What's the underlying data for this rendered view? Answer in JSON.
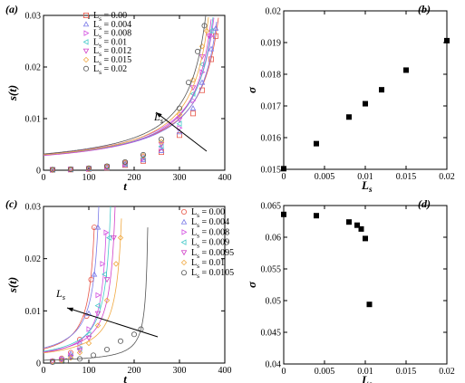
{
  "colors": {
    "series": [
      "#e8584a",
      "#7a7ae8",
      "#d24fe0",
      "#45c9c9",
      "#d040c8",
      "#f0a840",
      "#555555"
    ],
    "marker": "#000000"
  },
  "chart_data": [
    {
      "type": "scatter",
      "panel_label": "(a)",
      "xlabel": "t",
      "ylabel": "s(t)",
      "xlim": [
        0,
        400
      ],
      "ylim": [
        0,
        0.03
      ],
      "xticks": [
        "0",
        "100",
        "200",
        "300",
        "400"
      ],
      "yticks": [
        "0",
        "0.01",
        "0.02",
        "0.03"
      ],
      "legend_position": "top-left",
      "annotation": {
        "text": "L",
        "sub": "s",
        "direction": "increasing"
      },
      "series": [
        {
          "name": "L s = 0.00",
          "name_main": "L",
          "name_sub": "s",
          "name_value": " = 0.00",
          "marker": "square",
          "tc": 430,
          "x": [
            20,
            60,
            100,
            140,
            180,
            220,
            260,
            300,
            330,
            350,
            370,
            380
          ],
          "y": [
            8e-05,
            0.00013,
            0.00025,
            0.0005,
            0.001,
            0.0018,
            0.0035,
            0.0068,
            0.011,
            0.0155,
            0.0215,
            0.026
          ]
        },
        {
          "name": "L s = 0.004",
          "name_main": "L",
          "name_sub": "s",
          "name_value": " = 0.004",
          "marker": "triangle-up",
          "tc": 425,
          "x": [
            20,
            60,
            100,
            140,
            180,
            220,
            260,
            300,
            330,
            350,
            370,
            380
          ],
          "y": [
            8e-05,
            0.00014,
            0.00028,
            0.00055,
            0.0011,
            0.002,
            0.0038,
            0.0074,
            0.012,
            0.017,
            0.0235,
            0.0275
          ]
        },
        {
          "name": "L s = 0.008",
          "name_main": "L",
          "name_sub": "s",
          "name_value": " = 0.008",
          "marker": "triangle-right",
          "tc": 420,
          "x": [
            20,
            60,
            100,
            140,
            180,
            220,
            260,
            300,
            330,
            350,
            370
          ],
          "y": [
            9e-05,
            0.00015,
            0.0003,
            0.0006,
            0.0012,
            0.0022,
            0.0042,
            0.0082,
            0.0135,
            0.019,
            0.026
          ]
        },
        {
          "name": "L s = 0.01",
          "name_main": "L",
          "name_sub": "s",
          "name_value": " = 0.01",
          "marker": "triangle-left",
          "tc": 415,
          "x": [
            20,
            60,
            100,
            140,
            180,
            220,
            260,
            300,
            330,
            350,
            370
          ],
          "y": [
            9e-05,
            0.00016,
            0.00032,
            0.00065,
            0.0013,
            0.0024,
            0.0046,
            0.009,
            0.0148,
            0.0205,
            0.027
          ]
        },
        {
          "name": "L s = 0.012",
          "name_main": "L",
          "name_sub": "s",
          "name_value": " = 0.012",
          "marker": "triangle-down",
          "tc": 410,
          "x": [
            20,
            60,
            100,
            140,
            180,
            220,
            260,
            300,
            330,
            350,
            365
          ],
          "y": [
            0.0001,
            0.00017,
            0.00034,
            0.0007,
            0.0014,
            0.0026,
            0.005,
            0.0098,
            0.016,
            0.022,
            0.026
          ]
        },
        {
          "name": "L s = 0.015",
          "name_main": "L",
          "name_sub": "s",
          "name_value": " = 0.015",
          "marker": "diamond",
          "tc": 405,
          "x": [
            20,
            60,
            100,
            140,
            180,
            220,
            260,
            300,
            330,
            350,
            360
          ],
          "y": [
            0.0001,
            0.00018,
            0.00036,
            0.00075,
            0.0015,
            0.0028,
            0.0055,
            0.0108,
            0.0175,
            0.024,
            0.027
          ]
        },
        {
          "name": "L s = 0.02",
          "name_main": "L",
          "name_sub": "s",
          "name_value": " = 0.02",
          "marker": "circle",
          "tc": 400,
          "x": [
            20,
            60,
            100,
            140,
            180,
            220,
            260,
            300,
            320,
            340,
            355
          ],
          "y": [
            0.0001,
            0.0002,
            0.0004,
            0.0008,
            0.0016,
            0.003,
            0.006,
            0.012,
            0.017,
            0.023,
            0.028
          ]
        }
      ]
    },
    {
      "type": "scatter",
      "panel_label": "(b)",
      "xlabel": "L",
      "xlabel_sub": "s",
      "ylabel": "σ",
      "xlim": [
        0,
        0.02
      ],
      "ylim": [
        0.015,
        0.02
      ],
      "xticks": [
        "0",
        "0.005",
        "0.01",
        "0.015",
        "0.02"
      ],
      "yticks": [
        "0.015",
        "0.016",
        "0.017",
        "0.018",
        "0.019",
        "0.02"
      ],
      "x": [
        0.0,
        0.004,
        0.008,
        0.01,
        0.012,
        0.015,
        0.02
      ],
      "y": [
        0.01502,
        0.01581,
        0.01665,
        0.01707,
        0.01751,
        0.01813,
        0.01906
      ]
    },
    {
      "type": "scatter",
      "panel_label": "(c)",
      "xlabel": "t",
      "ylabel": "s(t)",
      "xlim": [
        0,
        400
      ],
      "ylim": [
        0,
        0.03
      ],
      "xticks": [
        "0",
        "100",
        "200",
        "300",
        "400"
      ],
      "yticks": [
        "0",
        "0.01",
        "0.02",
        "0.03"
      ],
      "legend_position": "top-right",
      "annotation": {
        "text": "L",
        "sub": "s",
        "direction": "increasing"
      },
      "series": [
        {
          "name": "L s = 0.00",
          "name_main": "L",
          "name_sub": "s",
          "name_value": " = 0.00",
          "marker": "circle",
          "tc": 125,
          "x": [
            20,
            40,
            60,
            80,
            95,
            105,
            112
          ],
          "y": [
            0.0004,
            0.0009,
            0.002,
            0.0045,
            0.009,
            0.016,
            0.026
          ]
        },
        {
          "name": "L s = 0.004",
          "name_main": "L",
          "name_sub": "s",
          "name_value": " = 0.004",
          "marker": "triangle-up",
          "tc": 135,
          "x": [
            20,
            40,
            60,
            80,
            100,
            112,
            120
          ],
          "y": [
            0.0004,
            0.0008,
            0.0018,
            0.004,
            0.0095,
            0.017,
            0.026
          ]
        },
        {
          "name": "L s = 0.008",
          "name_main": "L",
          "name_sub": "s",
          "name_value": " = 0.008",
          "marker": "triangle-right",
          "tc": 150,
          "x": [
            20,
            40,
            60,
            80,
            100,
            120,
            130,
            138
          ],
          "y": [
            0.0003,
            0.0007,
            0.0015,
            0.003,
            0.0065,
            0.013,
            0.019,
            0.025
          ]
        },
        {
          "name": "L s = 0.009",
          "name_main": "L",
          "name_sub": "s",
          "name_value": " = 0.009",
          "marker": "triangle-left",
          "tc": 160,
          "x": [
            20,
            40,
            60,
            80,
            100,
            120,
            135,
            145
          ],
          "y": [
            0.0003,
            0.0006,
            0.0013,
            0.0027,
            0.0055,
            0.011,
            0.017,
            0.024
          ]
        },
        {
          "name": "L s = 0.0095",
          "name_main": "L",
          "name_sub": "s",
          "name_value": " = 0.0095",
          "marker": "triangle-down",
          "tc": 170,
          "x": [
            20,
            40,
            60,
            80,
            100,
            120,
            140,
            155
          ],
          "y": [
            0.0003,
            0.0006,
            0.0012,
            0.0024,
            0.0048,
            0.0095,
            0.016,
            0.024
          ]
        },
        {
          "name": "L s = 0.01",
          "name_main": "L",
          "name_sub": "s",
          "name_value": " = 0.01",
          "marker": "diamond",
          "tc": 185,
          "x": [
            20,
            40,
            60,
            80,
            100,
            120,
            140,
            160,
            170
          ],
          "y": [
            0.0003,
            0.0005,
            0.001,
            0.002,
            0.0038,
            0.0072,
            0.012,
            0.019,
            0.024
          ]
        },
        {
          "name": "L s = 0.0105",
          "name_main": "L",
          "name_sub": "s",
          "name_value": " = 0.0105",
          "marker": "circle",
          "tc": 235,
          "x": [
            20,
            50,
            80,
            110,
            140,
            170,
            200,
            215
          ],
          "y": [
            0.0002,
            0.0004,
            0.0008,
            0.0015,
            0.0026,
            0.0042,
            0.0055,
            0.0065
          ]
        }
      ]
    },
    {
      "type": "scatter",
      "panel_label": "(d)",
      "xlabel": "L",
      "xlabel_sub": "s",
      "ylabel": "σ",
      "xlim": [
        0,
        0.02
      ],
      "ylim": [
        0.04,
        0.065
      ],
      "xticks": [
        "0",
        "0.005",
        "0.01",
        "0.015",
        "0.02"
      ],
      "yticks": [
        "0.04",
        "0.045",
        "0.05",
        "0.055",
        "0.06",
        "0.065"
      ],
      "x": [
        0.0,
        0.004,
        0.008,
        0.009,
        0.0095,
        0.01,
        0.0105
      ],
      "y": [
        0.0636,
        0.0634,
        0.0624,
        0.0619,
        0.0613,
        0.0598,
        0.0494
      ]
    }
  ]
}
